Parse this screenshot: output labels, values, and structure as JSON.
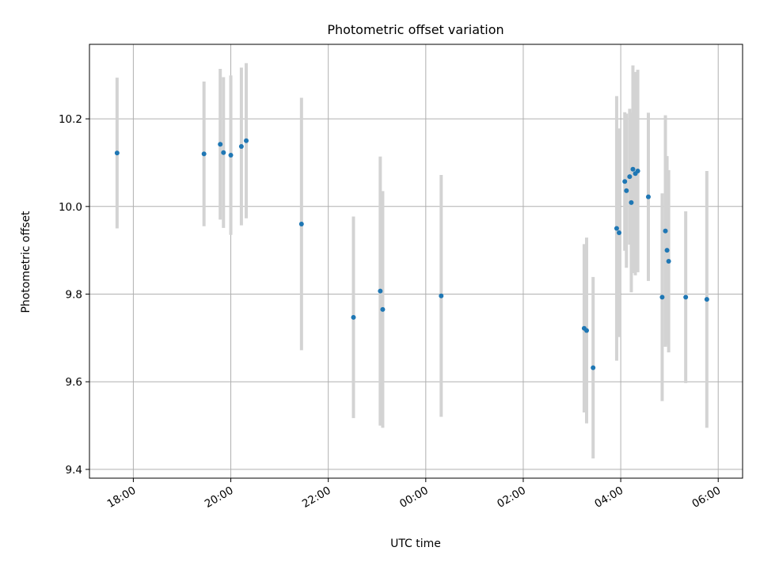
{
  "chart_data": {
    "type": "scatter",
    "title": "Photometric offset variation",
    "xlabel": "UTC time",
    "ylabel": "Photometric offset",
    "x_unit": "UTC time (hours, times after midnight continue past 24)",
    "xlim": [
      "17:06",
      "06:30"
    ],
    "ylim": [
      9.38,
      10.37
    ],
    "x_ticks": [
      "18:00",
      "20:00",
      "22:00",
      "00:00",
      "02:00",
      "04:00",
      "06:00"
    ],
    "y_ticks": [
      "9.4",
      "9.6",
      "9.8",
      "10.0",
      "10.2"
    ],
    "grid": true,
    "legend": "none",
    "colors": {
      "point": "#1f77b4",
      "errorbar": "#d3d3d3",
      "grid": "#b0b0b0"
    },
    "series": [
      {
        "points": [
          {
            "t": "17:40",
            "y": 10.122,
            "err": 0.172
          },
          {
            "t": "19:27",
            "y": 10.12,
            "err": 0.165
          },
          {
            "t": "19:47",
            "y": 10.142,
            "err": 0.172
          },
          {
            "t": "19:51",
            "y": 10.123,
            "err": 0.172
          },
          {
            "t": "20:00",
            "y": 10.117,
            "err": 0.182
          },
          {
            "t": "20:13",
            "y": 10.137,
            "err": 0.18
          },
          {
            "t": "20:19",
            "y": 10.15,
            "err": 0.177
          },
          {
            "t": "21:27",
            "y": 9.96,
            "err": 0.288
          },
          {
            "t": "22:31",
            "y": 9.747,
            "err": 0.23
          },
          {
            "t": "23:04",
            "y": 9.807,
            "err": 0.307
          },
          {
            "t": "23:07",
            "y": 9.765,
            "err": 0.27
          },
          {
            "t": "00:19",
            "y": 9.796,
            "err": 0.276
          },
          {
            "t": "03:15",
            "y": 9.722,
            "err": 0.192
          },
          {
            "t": "03:18",
            "y": 9.717,
            "err": 0.212
          },
          {
            "t": "03:26",
            "y": 9.632,
            "err": 0.207
          },
          {
            "t": "03:55",
            "y": 9.95,
            "err": 0.302
          },
          {
            "t": "03:58",
            "y": 9.94,
            "err": 0.238
          },
          {
            "t": "04:05",
            "y": 10.057,
            "err": 0.158
          },
          {
            "t": "04:07",
            "y": 10.036,
            "err": 0.176
          },
          {
            "t": "04:11",
            "y": 10.068,
            "err": 0.155
          },
          {
            "t": "04:13",
            "y": 10.009,
            "err": 0.205
          },
          {
            "t": "04:15",
            "y": 10.085,
            "err": 0.237
          },
          {
            "t": "04:18",
            "y": 10.075,
            "err": 0.232
          },
          {
            "t": "04:21",
            "y": 10.081,
            "err": 0.231
          },
          {
            "t": "04:34",
            "y": 10.022,
            "err": 0.192
          },
          {
            "t": "04:51",
            "y": 9.793,
            "err": 0.237
          },
          {
            "t": "04:55",
            "y": 9.944,
            "err": 0.264
          },
          {
            "t": "04:57",
            "y": 9.9,
            "err": 0.215
          },
          {
            "t": "04:59",
            "y": 9.875,
            "err": 0.208
          },
          {
            "t": "05:20",
            "y": 9.793,
            "err": 0.196
          },
          {
            "t": "05:46",
            "y": 9.788,
            "err": 0.293
          }
        ]
      }
    ]
  }
}
